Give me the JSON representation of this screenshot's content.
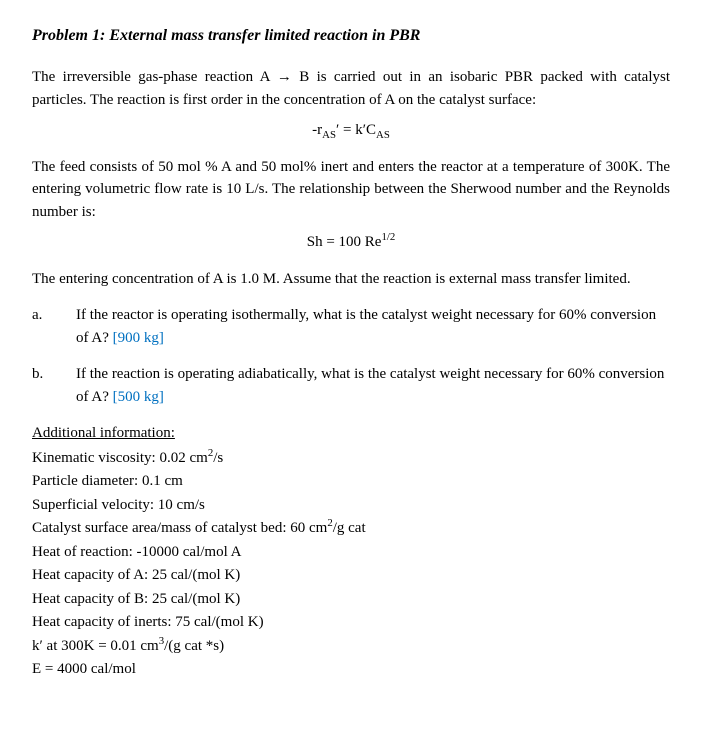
{
  "title": "Problem 1: External mass transfer limited reaction in PBR",
  "para1": "The irreversible gas-phase reaction A → B is carried out in an isobaric PBR packed with catalyst particles.  The reaction is first order in the concentration of A on the catalyst surface:",
  "eq1_html": "-r<sub>AS</sub>′ = k′C<sub>AS</sub>",
  "para2": "The feed consists of 50 mol % A and 50 mol% inert and enters the reactor at a temperature of 300K.  The entering volumetric flow rate is 10 L/s.  The relationship between the Sherwood number and the Reynolds number is:",
  "eq2_html": "Sh = 100 Re<sup>1/2</sup>",
  "para3": "The entering concentration of A is 1.0 M.  Assume that the reaction is external mass transfer limited.",
  "subs": [
    {
      "letter": "a.",
      "text": "If the reactor is operating isothermally, what is the catalyst weight necessary for 60% conversion of A? ",
      "answer": "[900 kg]"
    },
    {
      "letter": "b.",
      "text": "If the reaction is operating adiabatically, what is the catalyst weight necessary for 60% conversion of A? ",
      "answer": "[500 kg]"
    }
  ],
  "info_heading": "Additional information:",
  "info_lines_html": [
    "Kinematic viscosity:  0.02 cm<sup>2</sup>/s",
    "Particle diameter:  0.1 cm",
    "Superficial velocity:  10 cm/s",
    "Catalyst surface area/mass of catalyst bed:  60 cm<sup>2</sup>/g cat",
    "Heat of reaction: -10000 cal/mol A",
    "Heat capacity of A:  25 cal/(mol K)",
    "Heat capacity of B:  25 cal/(mol K)",
    "Heat capacity of inerts:  75 cal/(mol K)",
    "k′ at 300K = 0.01 cm<sup>3</sup>/(g cat *s)",
    "E = 4000 cal/mol"
  ],
  "colors": {
    "answer": "#0070c0",
    "text": "#000000",
    "bg": "#ffffff"
  }
}
